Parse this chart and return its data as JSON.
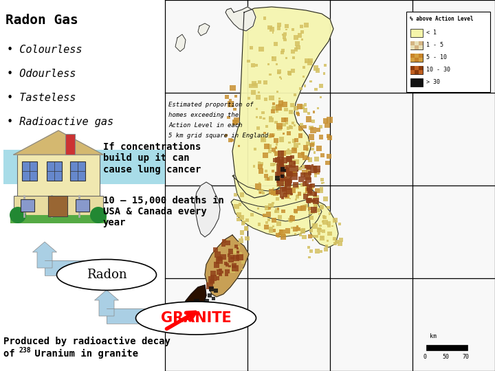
{
  "title": "Radon Gas",
  "bullets": [
    " Colourless",
    " Odourless",
    " Tasteless",
    " Radioactive gas"
  ],
  "text_conc": "If concentrations\nbuild up it can\ncause lung cancer",
  "text_deaths": "10 – 15,000 deaths in\nUSA & Canada every\nyear",
  "text_radon": "Radon",
  "text_granite": "GRANITE",
  "text_produced1": "Produced by radioactive decay",
  "text_produced2": "of ",
  "text_super": "238",
  "text_produced3": " Uranium in granite",
  "bg_color": "#ffffff",
  "arrow_fill": "#aacfe4",
  "granite_color": "#ff0000",
  "map_bg": "#ffffff",
  "england_fill": "#f5f5b0",
  "legend_title": "% above Action Level",
  "legend_labels": [
    "< 1",
    "1 - 5",
    "5 - 10",
    "10 - 30",
    "> 30"
  ],
  "legend_colors": [
    "#f5f5aa",
    "#d4b483",
    "#c8842a",
    "#8b3a0a",
    "#111111"
  ],
  "caption_lines": [
    "Estimated proportion of",
    "homes exceeding the",
    "Action Level in each",
    "5 km grid square in England"
  ]
}
